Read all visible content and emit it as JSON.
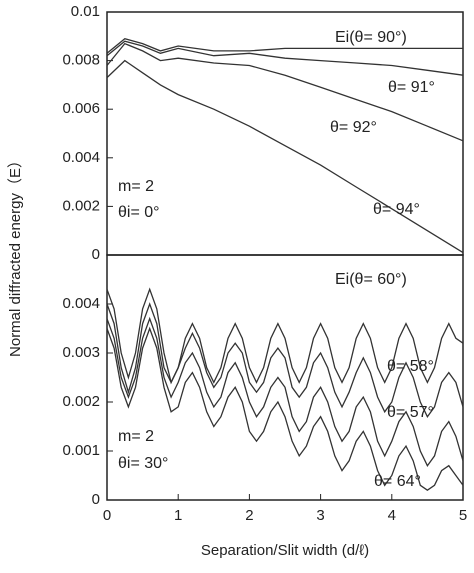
{
  "chart_data": [
    {
      "type": "line",
      "ylabel": "Normal diffracted energy（E）",
      "xlim": [
        0,
        5
      ],
      "ylim": [
        0,
        0.01
      ],
      "yticks": [
        0,
        0.002,
        0.004,
        0.006,
        0.008,
        0.01
      ],
      "x": [
        0,
        0.25,
        0.5,
        0.75,
        1,
        1.5,
        2,
        2.5,
        3,
        3.5,
        4,
        4.5,
        5
      ],
      "series": [
        {
          "name": "Ei(θ= 90°)",
          "color": "#333333",
          "values": [
            0.0083,
            0.0089,
            0.0087,
            0.0084,
            0.0086,
            0.0084,
            0.0084,
            0.0085,
            0.0085,
            0.0085,
            0.0085,
            0.0085,
            0.0085
          ]
        },
        {
          "name": "θ= 91°",
          "color": "#333333",
          "values": [
            0.0082,
            0.0088,
            0.0086,
            0.0083,
            0.0085,
            0.0082,
            0.0083,
            0.0081,
            0.008,
            0.0079,
            0.0078,
            0.0076,
            0.0074
          ]
        },
        {
          "name": "θ= 92°",
          "color": "#333333",
          "values": [
            0.0078,
            0.0087,
            0.0084,
            0.008,
            0.0081,
            0.0079,
            0.0078,
            0.0074,
            0.0069,
            0.0064,
            0.0059,
            0.0053,
            0.0047
          ]
        },
        {
          "name": "θ= 94°",
          "color": "#333333",
          "values": [
            0.0073,
            0.008,
            0.0075,
            0.007,
            0.0066,
            0.006,
            0.0053,
            0.0045,
            0.0037,
            0.0028,
            0.0019,
            0.001,
            0.0001
          ]
        }
      ],
      "annotations": [
        "m= 2",
        "θi= 0°"
      ]
    },
    {
      "type": "line",
      "xlabel": "Separation/Slit width (d/ℓ)",
      "xlim": [
        0,
        5
      ],
      "xticks": [
        0,
        1,
        2,
        3,
        4,
        5
      ],
      "ylim": [
        0,
        0.005
      ],
      "yticks": [
        0,
        0.001,
        0.002,
        0.003,
        0.004
      ],
      "x": [
        0,
        0.1,
        0.2,
        0.3,
        0.4,
        0.5,
        0.6,
        0.7,
        0.8,
        0.9,
        1,
        1.1,
        1.2,
        1.3,
        1.4,
        1.5,
        1.6,
        1.7,
        1.8,
        1.9,
        2,
        2.1,
        2.2,
        2.3,
        2.4,
        2.5,
        2.6,
        2.7,
        2.8,
        2.9,
        3,
        3.1,
        3.2,
        3.3,
        3.4,
        3.5,
        3.6,
        3.7,
        3.8,
        3.9,
        4,
        4.1,
        4.2,
        4.3,
        4.4,
        4.5,
        4.6,
        4.7,
        4.8,
        4.9,
        5
      ],
      "series": [
        {
          "name": "Ei(θ= 60°)",
          "color": "#333333",
          "values": [
            0.0043,
            0.0039,
            0.003,
            0.0025,
            0.003,
            0.0039,
            0.0043,
            0.0039,
            0.003,
            0.0024,
            0.0027,
            0.0033,
            0.0036,
            0.0033,
            0.0027,
            0.0024,
            0.0027,
            0.0033,
            0.0036,
            0.0033,
            0.0027,
            0.0024,
            0.0027,
            0.0033,
            0.0036,
            0.0033,
            0.0027,
            0.0024,
            0.0027,
            0.0033,
            0.0036,
            0.0033,
            0.0027,
            0.0024,
            0.0027,
            0.0033,
            0.0036,
            0.0033,
            0.0027,
            0.0024,
            0.0027,
            0.0033,
            0.0036,
            0.0033,
            0.0027,
            0.0024,
            0.0027,
            0.0033,
            0.0036,
            0.0033,
            0.0032
          ]
        },
        {
          "name": "θ= 58°",
          "color": "#333333",
          "values": [
            0.004,
            0.0036,
            0.0027,
            0.0022,
            0.0027,
            0.0036,
            0.004,
            0.0036,
            0.0027,
            0.0024,
            0.0027,
            0.0031,
            0.0034,
            0.0031,
            0.0026,
            0.0023,
            0.0025,
            0.003,
            0.0032,
            0.003,
            0.0024,
            0.0022,
            0.0024,
            0.0029,
            0.0031,
            0.0029,
            0.0023,
            0.0021,
            0.0023,
            0.0028,
            0.003,
            0.0027,
            0.0022,
            0.0019,
            0.0022,
            0.0026,
            0.0029,
            0.0026,
            0.0021,
            0.0018,
            0.002,
            0.0025,
            0.0028,
            0.0025,
            0.002,
            0.0017,
            0.0019,
            0.0024,
            0.0026,
            0.0024,
            0.0019
          ]
        },
        {
          "name": "θ= 57°",
          "color": "#333333",
          "values": [
            0.0037,
            0.0033,
            0.0025,
            0.0021,
            0.0025,
            0.0033,
            0.0037,
            0.0033,
            0.0025,
            0.0021,
            0.0024,
            0.0028,
            0.003,
            0.0027,
            0.0022,
            0.0019,
            0.0021,
            0.0026,
            0.0028,
            0.0025,
            0.002,
            0.0017,
            0.0019,
            0.0023,
            0.0025,
            0.0023,
            0.0017,
            0.0014,
            0.0016,
            0.0021,
            0.0023,
            0.002,
            0.0015,
            0.0012,
            0.0014,
            0.0019,
            0.0021,
            0.0018,
            0.0012,
            0.0009,
            0.0012,
            0.0016,
            0.0018,
            0.0015,
            0.001,
            0.0007,
            0.0009,
            0.0014,
            0.0016,
            0.0013,
            0.0008
          ]
        },
        {
          "name": "θ= 64°",
          "color": "#333333",
          "values": [
            0.0035,
            0.0031,
            0.0023,
            0.0019,
            0.0023,
            0.0031,
            0.0035,
            0.0031,
            0.0023,
            0.0018,
            0.0019,
            0.0024,
            0.0026,
            0.0023,
            0.0018,
            0.0015,
            0.0017,
            0.0021,
            0.0023,
            0.002,
            0.0014,
            0.0012,
            0.0014,
            0.0018,
            0.002,
            0.0017,
            0.0012,
            0.0009,
            0.0011,
            0.0015,
            0.0017,
            0.0014,
            0.0009,
            0.0006,
            0.0008,
            0.0012,
            0.0014,
            0.0011,
            0.0006,
            0.0003,
            0.0005,
            0.0009,
            0.0011,
            0.0008,
            0.0003,
            0.0002,
            0.0003,
            0.0006,
            0.0007,
            0.0005,
            0.0003
          ]
        }
      ],
      "annotations": [
        "m= 2",
        "θi= 30°"
      ]
    }
  ]
}
